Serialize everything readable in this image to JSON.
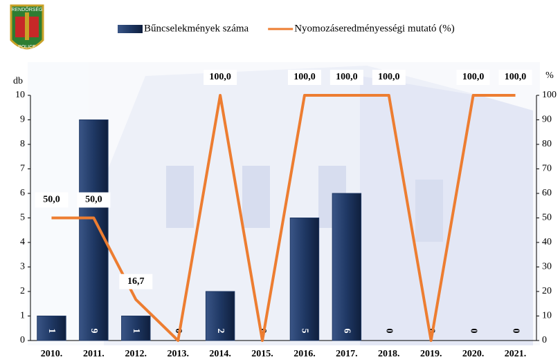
{
  "logo": {
    "top": "RENDŐRSÉG",
    "bottom": "POLICE"
  },
  "chart_data": {
    "type": "bar",
    "categories": [
      "2010.",
      "2011.",
      "2012.",
      "2013.",
      "2014.",
      "2015.",
      "2016.",
      "2017.",
      "2018.",
      "2019.",
      "2020.",
      "2021."
    ],
    "ylabel": "db",
    "y2label": "%",
    "ylim": [
      0,
      10
    ],
    "yticks": [
      0,
      1,
      2,
      3,
      4,
      5,
      6,
      7,
      8,
      9,
      10
    ],
    "y2lim": [
      0,
      100
    ],
    "y2ticks": [
      0,
      10,
      20,
      30,
      40,
      50,
      60,
      70,
      80,
      90,
      100
    ],
    "grid": false,
    "series": [
      {
        "name": "Bűncselekmények száma",
        "type": "bar",
        "color": "#1f3864",
        "values": [
          1,
          9,
          1,
          0,
          2,
          0,
          5,
          6,
          0,
          0,
          0,
          0
        ]
      },
      {
        "name": "Nyomozáseredményességi mutató (%)",
        "type": "line",
        "axis": "y2",
        "color": "#ed7d31",
        "values": [
          50,
          50,
          16.7,
          0,
          100,
          0,
          100,
          100,
          100,
          0,
          100,
          100
        ],
        "value_labels": [
          "50,0",
          "50,0",
          "16,7",
          null,
          "100,0",
          null,
          "100,0",
          "100,0",
          "100,0",
          null,
          "100,0",
          "100,0"
        ]
      }
    ]
  }
}
